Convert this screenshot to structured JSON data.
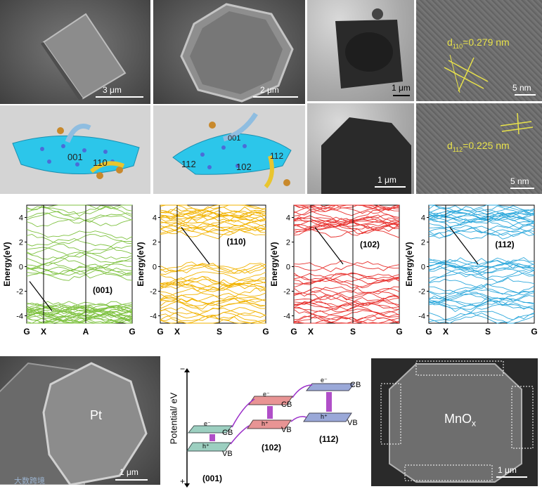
{
  "top": {
    "sem1": {
      "scale": "3 μm"
    },
    "sem2": {
      "scale": "2 μm"
    },
    "tem1": {
      "scale": "1 μm"
    },
    "hr1": {
      "label": "d110=0.279 nm",
      "label_main": "d",
      "label_sub": "110",
      "label_rest": "=0.279 nm",
      "scale": "5 nm"
    },
    "tem2": {
      "scale": "1 μm"
    },
    "hr2": {
      "label": "d112=0.225 nm",
      "label_main": "d",
      "label_sub": "112",
      "label_rest": "=0.225 nm",
      "scale": "5 nm"
    },
    "diagram1": {
      "facets": [
        "001",
        "110"
      ]
    },
    "diagram2": {
      "facets": [
        "001",
        "112",
        "102",
        "112"
      ]
    }
  },
  "band_plots": [
    {
      "facet": "(001)",
      "color": "#7fc241",
      "ylabel": "Energy(eV)",
      "kpoints": [
        "G",
        "X",
        "A",
        "G"
      ],
      "yticks": [
        "4",
        "2",
        "0",
        "-2",
        "-4"
      ],
      "ylim": [
        -4.6,
        5.0
      ]
    },
    {
      "facet": "(110)",
      "color": "#f2b300",
      "ylabel": "Energy(eV)",
      "kpoints": [
        "G",
        "X",
        "S",
        "G"
      ],
      "yticks": [
        "4",
        "2",
        "0",
        "-2",
        "-4"
      ],
      "ylim": [
        -4.6,
        5.0
      ]
    },
    {
      "facet": "(102)",
      "color": "#e8322f",
      "ylabel": "Energy(eV)",
      "kpoints": [
        "G",
        "X",
        "S",
        "G"
      ],
      "yticks": [
        "4",
        "2",
        "0",
        "-2",
        "-4"
      ],
      "ylim": [
        -4.6,
        5.0
      ]
    },
    {
      "facet": "(112)",
      "color": "#2fa9dc",
      "ylabel": "Energy(eV)",
      "kpoints": [
        "G",
        "X",
        "S",
        "G"
      ],
      "yticks": [
        "4",
        "2",
        "0",
        "-2",
        "-4"
      ],
      "ylim": [
        -4.6,
        5.0
      ]
    }
  ],
  "bottom": {
    "sem_pt": {
      "label": "Pt",
      "scale": "1 μm"
    },
    "schematic": {
      "ylabel": "Potential/ eV",
      "minus": "−",
      "plus": "+",
      "levels": [
        {
          "facet": "(001)",
          "cb": "CB",
          "vb": "VB",
          "e": "e⁻",
          "h": "h⁺"
        },
        {
          "facet": "(102)",
          "cb": "CB",
          "vb": "VB",
          "e": "e⁻",
          "h": "h⁺"
        },
        {
          "facet": "(112)",
          "cb": "CB",
          "vb": "VB",
          "e": "e⁻",
          "h": "h⁺"
        }
      ]
    },
    "sem_mnox": {
      "label_main": "MnO",
      "label_sub": "x",
      "scale": "1 μm"
    },
    "watermark": "大数跨境"
  }
}
